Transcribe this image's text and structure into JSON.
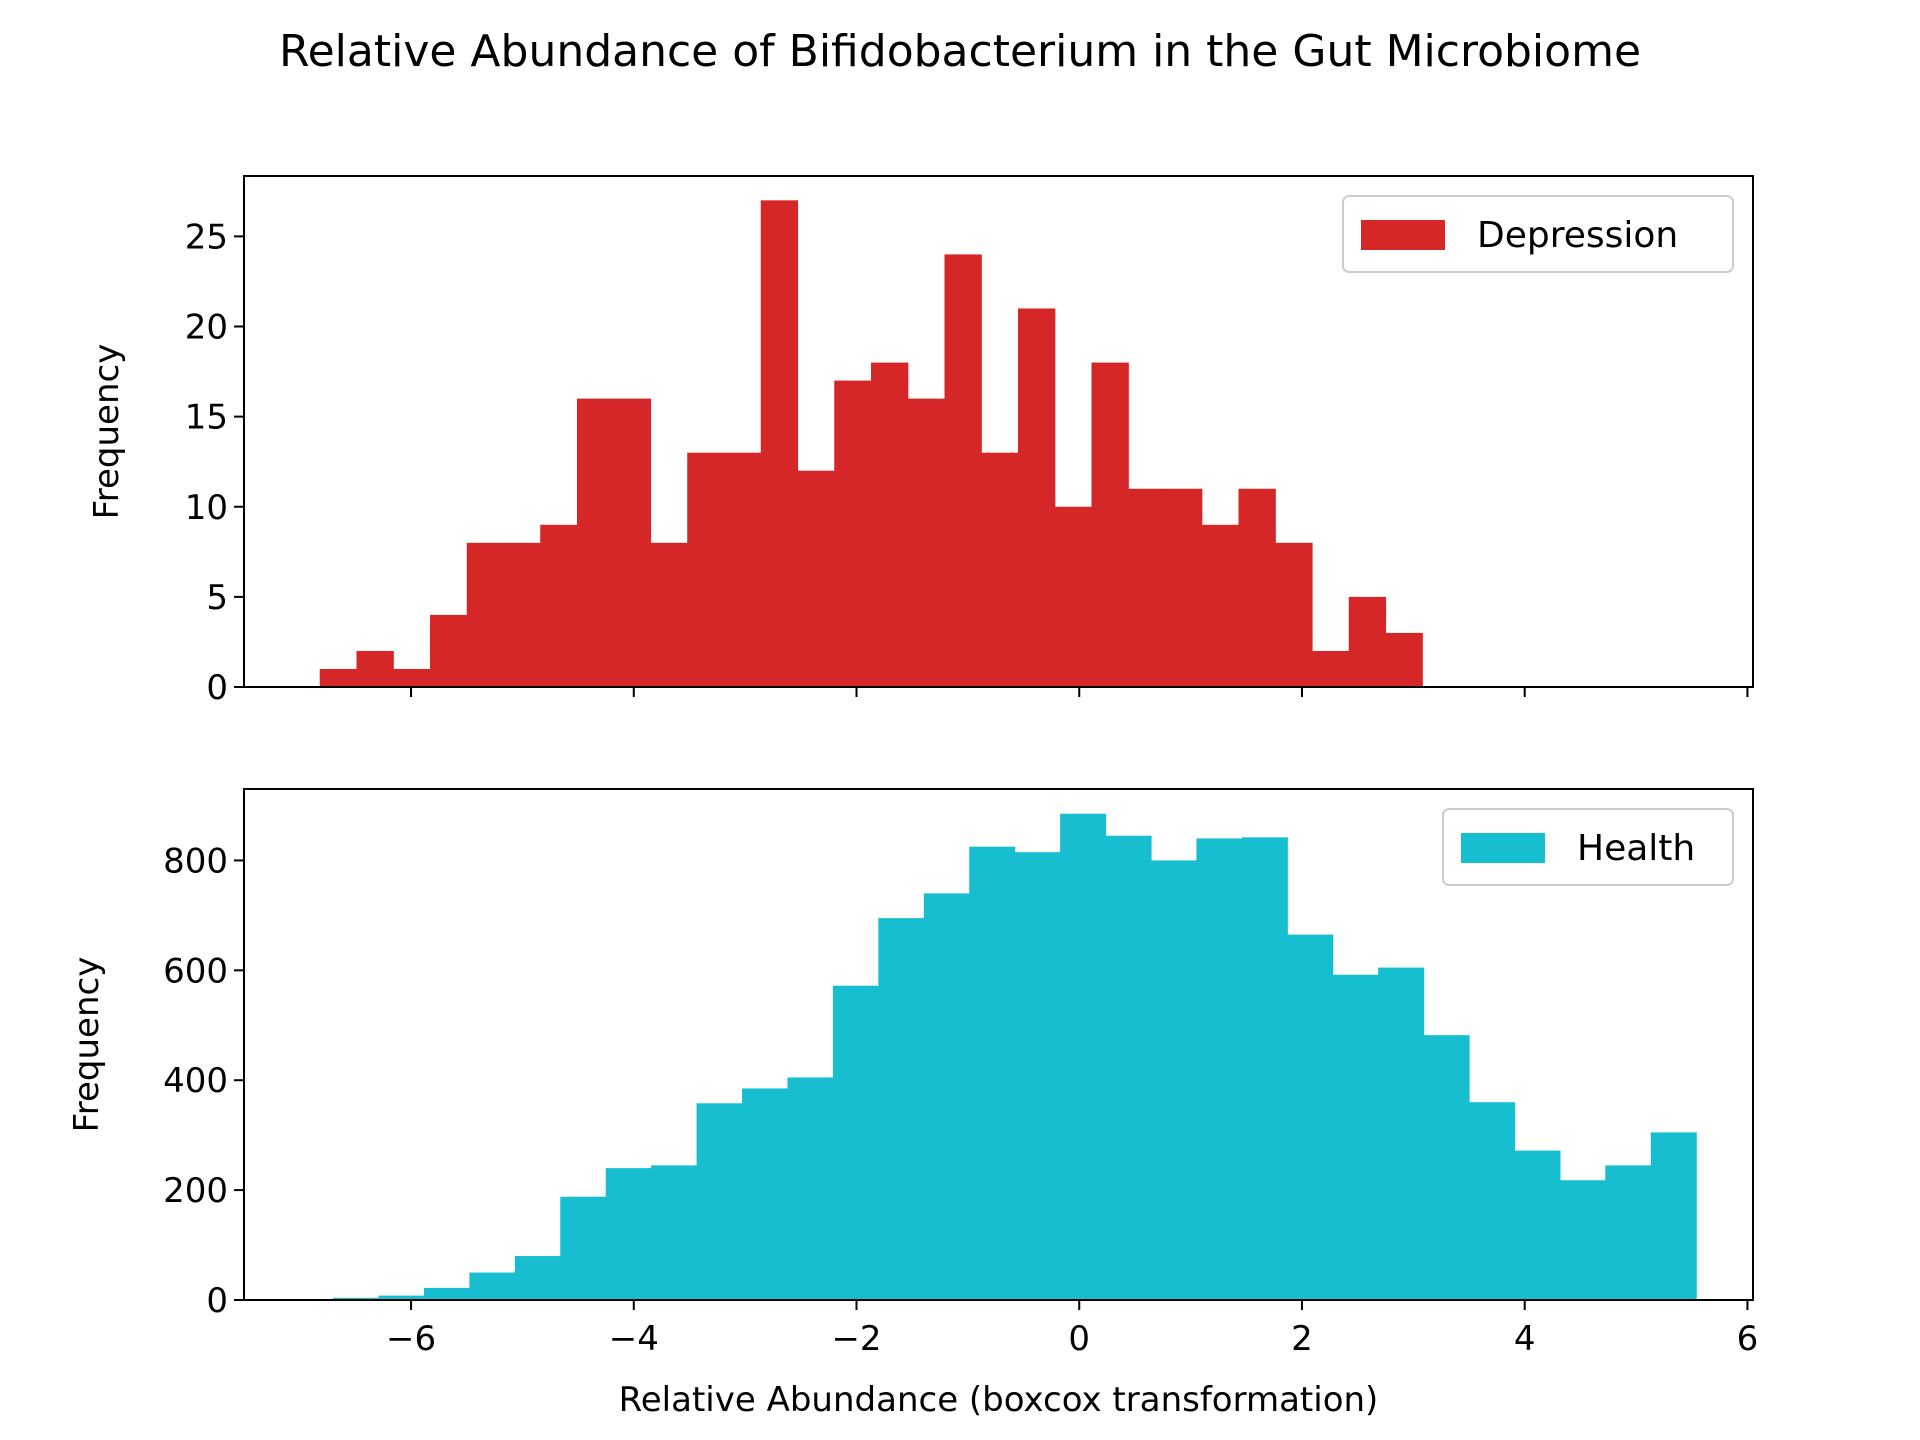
{
  "figure": {
    "title": "Relative Abundance of Bifidobacterium in the Gut Microbiome"
  },
  "chart_data": [
    {
      "type": "bar",
      "subtype": "histogram",
      "color": "#d62728",
      "legend": {
        "label": "Depression",
        "position": "upper-right"
      },
      "ylabel": "Frequency",
      "xlabel": "",
      "xlim": [
        -7.5,
        6.05
      ],
      "ylim": [
        0,
        28.35
      ],
      "xticks": [
        -6,
        -4,
        -2,
        0,
        2,
        4,
        6
      ],
      "xtick_labels_visible": false,
      "yticks": [
        0,
        5,
        10,
        15,
        20,
        25
      ],
      "bin_width": 0.33,
      "bin_edges_start": -6.82,
      "values": [
        1,
        2,
        1,
        4,
        8,
        8,
        9,
        16,
        16,
        8,
        13,
        13,
        27,
        12,
        17,
        18,
        16,
        24,
        13,
        21,
        10,
        18,
        11,
        11,
        9,
        11,
        8,
        2,
        5,
        3
      ]
    },
    {
      "type": "bar",
      "subtype": "histogram",
      "color": "#17becf",
      "legend": {
        "label": "Health",
        "position": "upper-right"
      },
      "ylabel": "Frequency",
      "xlabel": "Relative Abundance (boxcox transformation)",
      "xlim": [
        -7.5,
        6.05
      ],
      "ylim": [
        0,
        930
      ],
      "xticks": [
        -6,
        -4,
        -2,
        0,
        2,
        4,
        6
      ],
      "xtick_labels_visible": true,
      "yticks": [
        0,
        200,
        400,
        600,
        800
      ],
      "bin_width": 0.408,
      "bin_edges_start": -6.7,
      "values": [
        4,
        8,
        22,
        50,
        80,
        188,
        240,
        245,
        358,
        385,
        405,
        572,
        695,
        740,
        825,
        815,
        885,
        845,
        800,
        840,
        842,
        665,
        592,
        605,
        482,
        360,
        272,
        218,
        245,
        305
      ]
    }
  ]
}
